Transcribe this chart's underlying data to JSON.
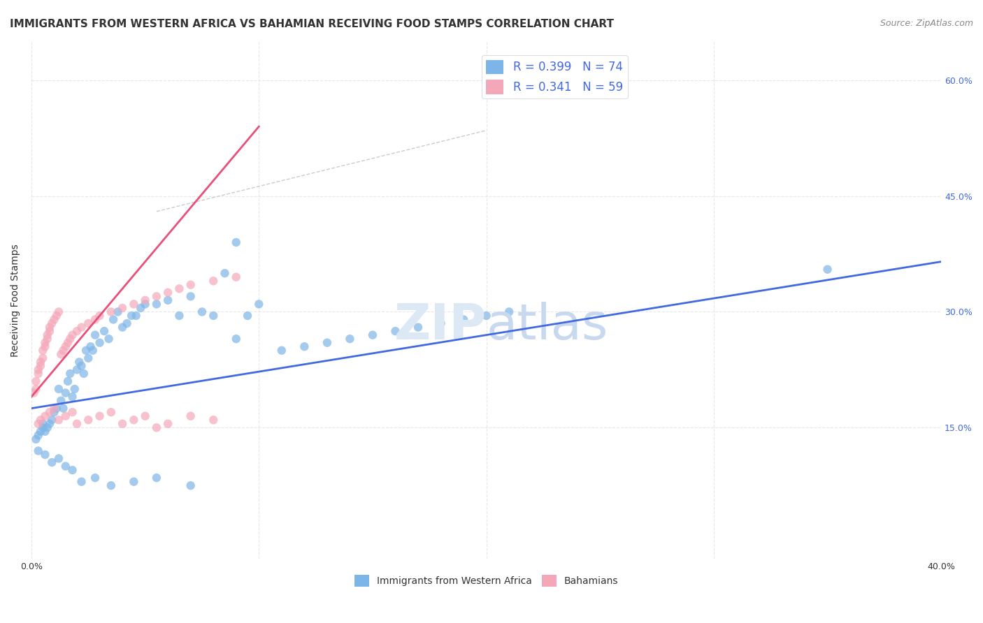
{
  "title": "IMMIGRANTS FROM WESTERN AFRICA VS BAHAMIAN RECEIVING FOOD STAMPS CORRELATION CHART",
  "source": "Source: ZipAtlas.com",
  "ylabel": "Receiving Food Stamps",
  "ytick_labels": [
    "15.0%",
    "30.0%",
    "45.0%",
    "60.0%"
  ],
  "ytick_values": [
    0.15,
    0.3,
    0.45,
    0.6
  ],
  "xlim": [
    0.0,
    0.4
  ],
  "ylim": [
    -0.02,
    0.65
  ],
  "legend_label1": "R = 0.399   N = 74",
  "legend_label2": "R = 0.341   N = 59",
  "legend_color1": "#7EB5E8",
  "legend_color2": "#F4A7B9",
  "scatter_color1": "#7EB5E8",
  "scatter_color2": "#F4A7B9",
  "line_color1": "#4169E1",
  "line_color2": "#E8507A",
  "background_color": "#FFFFFF",
  "grid_color": "#DDDDDD",
  "title_fontsize": 11,
  "source_fontsize": 9,
  "axis_label_fontsize": 10,
  "tick_fontsize": 9,
  "legend_label_color": "#4169E1",
  "blue_scatter_x": [
    0.002,
    0.003,
    0.004,
    0.005,
    0.005,
    0.006,
    0.007,
    0.008,
    0.009,
    0.01,
    0.011,
    0.012,
    0.013,
    0.014,
    0.015,
    0.016,
    0.017,
    0.018,
    0.019,
    0.02,
    0.021,
    0.022,
    0.023,
    0.024,
    0.025,
    0.026,
    0.027,
    0.028,
    0.03,
    0.032,
    0.034,
    0.036,
    0.038,
    0.04,
    0.042,
    0.044,
    0.046,
    0.048,
    0.05,
    0.055,
    0.06,
    0.065,
    0.07,
    0.075,
    0.08,
    0.085,
    0.09,
    0.095,
    0.1,
    0.11,
    0.12,
    0.13,
    0.14,
    0.15,
    0.16,
    0.17,
    0.18,
    0.19,
    0.2,
    0.21,
    0.003,
    0.006,
    0.009,
    0.012,
    0.015,
    0.018,
    0.022,
    0.028,
    0.035,
    0.045,
    0.055,
    0.07,
    0.09,
    0.35
  ],
  "blue_scatter_y": [
    0.135,
    0.14,
    0.145,
    0.15,
    0.155,
    0.145,
    0.15,
    0.155,
    0.16,
    0.17,
    0.175,
    0.2,
    0.185,
    0.175,
    0.195,
    0.21,
    0.22,
    0.19,
    0.2,
    0.225,
    0.235,
    0.23,
    0.22,
    0.25,
    0.24,
    0.255,
    0.25,
    0.27,
    0.26,
    0.275,
    0.265,
    0.29,
    0.3,
    0.28,
    0.285,
    0.295,
    0.295,
    0.305,
    0.31,
    0.31,
    0.315,
    0.295,
    0.32,
    0.3,
    0.295,
    0.35,
    0.265,
    0.295,
    0.31,
    0.25,
    0.255,
    0.26,
    0.265,
    0.27,
    0.275,
    0.28,
    0.285,
    0.29,
    0.295,
    0.3,
    0.12,
    0.115,
    0.105,
    0.11,
    0.1,
    0.095,
    0.08,
    0.085,
    0.075,
    0.08,
    0.085,
    0.075,
    0.39,
    0.355
  ],
  "pink_scatter_x": [
    0.001,
    0.002,
    0.002,
    0.003,
    0.003,
    0.004,
    0.004,
    0.005,
    0.005,
    0.006,
    0.006,
    0.007,
    0.007,
    0.008,
    0.008,
    0.009,
    0.01,
    0.011,
    0.012,
    0.013,
    0.014,
    0.015,
    0.016,
    0.017,
    0.018,
    0.02,
    0.022,
    0.025,
    0.028,
    0.03,
    0.035,
    0.04,
    0.045,
    0.05,
    0.055,
    0.06,
    0.065,
    0.07,
    0.08,
    0.09,
    0.003,
    0.004,
    0.006,
    0.008,
    0.01,
    0.012,
    0.015,
    0.018,
    0.02,
    0.025,
    0.03,
    0.035,
    0.04,
    0.045,
    0.05,
    0.055,
    0.06,
    0.07,
    0.08
  ],
  "pink_scatter_y": [
    0.195,
    0.2,
    0.21,
    0.22,
    0.225,
    0.23,
    0.235,
    0.24,
    0.25,
    0.255,
    0.26,
    0.265,
    0.27,
    0.275,
    0.28,
    0.285,
    0.29,
    0.295,
    0.3,
    0.245,
    0.25,
    0.255,
    0.26,
    0.265,
    0.27,
    0.275,
    0.28,
    0.285,
    0.29,
    0.295,
    0.3,
    0.305,
    0.31,
    0.315,
    0.32,
    0.325,
    0.33,
    0.335,
    0.34,
    0.345,
    0.155,
    0.16,
    0.165,
    0.17,
    0.175,
    0.16,
    0.165,
    0.17,
    0.155,
    0.16,
    0.165,
    0.17,
    0.155,
    0.16,
    0.165,
    0.15,
    0.155,
    0.165,
    0.16
  ],
  "blue_line_x": [
    0.0,
    0.4
  ],
  "blue_line_y": [
    0.175,
    0.365
  ],
  "pink_line_x": [
    0.0,
    0.1
  ],
  "pink_line_y": [
    0.19,
    0.54
  ],
  "diag_line_x": [
    0.055,
    0.2
  ],
  "diag_line_y": [
    0.43,
    0.535
  ],
  "bottom_legend1": "Immigrants from Western Africa",
  "bottom_legend2": "Bahamians"
}
